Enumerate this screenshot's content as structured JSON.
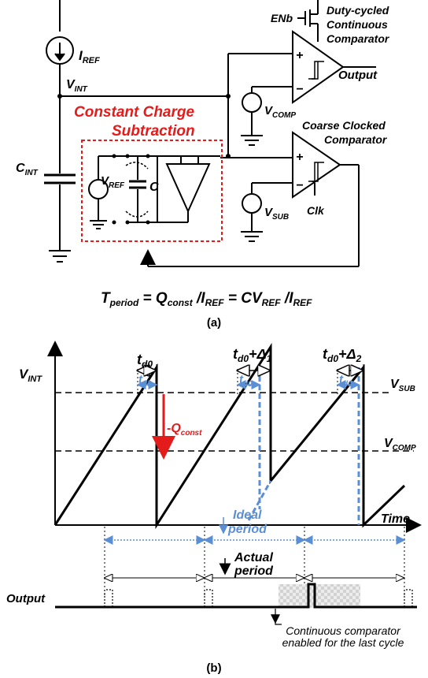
{
  "circuit": {
    "i_ref": "I",
    "i_ref_sub": "REF",
    "v_int": "V",
    "v_int_sub": "INT",
    "c_int": "C",
    "c_int_sub": "INT",
    "v_ref": "V",
    "v_ref_sub": "REF",
    "c_label": "C",
    "v_comp": "V",
    "v_comp_sub": "COMP",
    "v_sub": "V",
    "v_sub_sub": "SUB",
    "enb": "ENb",
    "clk": "Clk",
    "output": "Output",
    "cont_comp_line1": "Duty-cycled",
    "cont_comp_line2": "Continuous",
    "cont_comp_line3": "Comparator",
    "clocked_comp_line1": "Coarse Clocked",
    "clocked_comp_line2": "Comparator",
    "ccs_line1": "Constant Charge",
    "ccs_line2": "Subtraction",
    "plus": "+",
    "minus": "−"
  },
  "equation": {
    "t": "T",
    "t_sub": "period",
    "eq1": " = Q",
    "q_sub": "const",
    "slash1": " /I",
    "i_sub1": "REF",
    "eq2": " = CV",
    "v_sub": "REF",
    "slash2": " /I",
    "i_sub2": "REF"
  },
  "caption_a": "(a)",
  "caption_b": "(b)",
  "timing": {
    "v_int": "V",
    "v_int_sub": "INT",
    "v_sub": "V",
    "v_sub_sub": "SUB",
    "v_comp": "V",
    "v_comp_sub": "COMP",
    "time": "Time",
    "td0": "t",
    "td0_sub": "d0",
    "plus_delta1": "+Δ",
    "delta1_sub": "1",
    "plus_delta2": "+Δ",
    "delta2_sub": "2",
    "q_const": "-Q",
    "q_const_sub": "const",
    "ideal_line1": "Ideal",
    "ideal_line2": "period",
    "actual_line1": "Actual",
    "actual_line2": "period",
    "output": "Output",
    "note_line1": "Continuous comparator",
    "note_line2": "enabled for the last cycle"
  },
  "colors": {
    "accent_blue": "#5b8fd4",
    "accent_red": "#e31b1b",
    "ink": "#000000"
  }
}
